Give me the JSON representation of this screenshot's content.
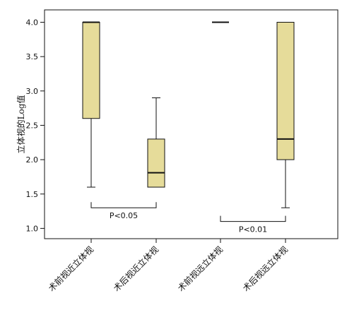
{
  "chart_data": {
    "type": "box",
    "ylabel": "立体视的Log值",
    "ylim": [
      0.85,
      4.18
    ],
    "yticks": [
      1.0,
      1.5,
      2.0,
      2.5,
      3.0,
      3.5,
      4.0
    ],
    "ytick_labels": [
      "1.0",
      "1.5",
      "2.0",
      "2.5",
      "3.0",
      "3.5",
      "4.0"
    ],
    "categories": [
      "术前视近立体视",
      "术后视近立体视",
      "术前视远立体视",
      "术后视远立体视"
    ],
    "boxes": [
      {
        "whisker_low": 1.6,
        "q1": 2.6,
        "median": 4.0,
        "q3": 4.0,
        "whisker_high": 4.0
      },
      {
        "whisker_low": 1.6,
        "q1": 1.6,
        "median": 1.81,
        "q3": 2.3,
        "whisker_high": 2.9
      },
      {
        "whisker_low": 4.0,
        "q1": 4.0,
        "median": 4.0,
        "q3": 4.0,
        "whisker_high": 4.0
      },
      {
        "whisker_low": 1.3,
        "q1": 2.0,
        "median": 2.3,
        "q3": 4.0,
        "whisker_high": 4.0
      }
    ],
    "annotations": [
      {
        "text": "P<0.05",
        "from": 0,
        "to": 1,
        "y": 1.3
      },
      {
        "text": "P<0.01",
        "from": 2,
        "to": 3,
        "y": 1.1
      }
    ],
    "colors": {
      "box_fill": "#e6dc9a",
      "stroke": "#111111"
    }
  }
}
